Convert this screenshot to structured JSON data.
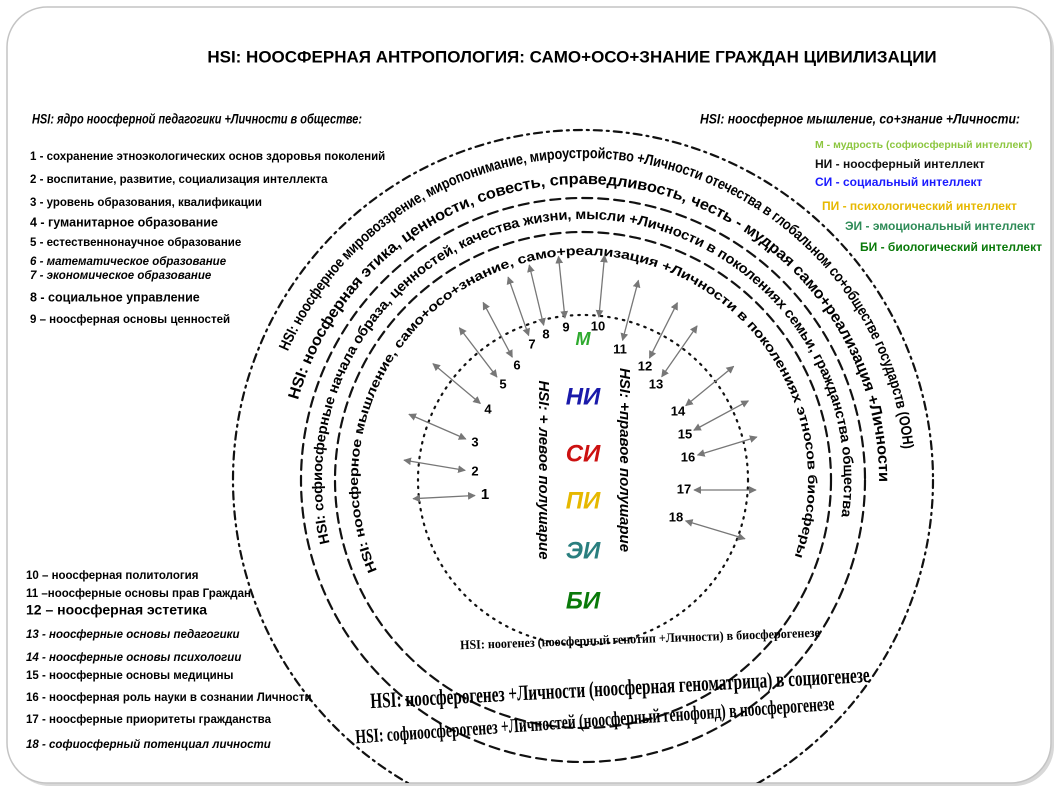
{
  "title": "HSI: НООСФЕРНАЯ АНТРОПОЛОГИЯ: САМО+ОСО+ЗНАНИЕ ГРАЖДАН ЦИВИЛИЗАЦИИ",
  "left_panel": {
    "heading": "HSI: ядро ноосферной педагогики +Личности в обществе:",
    "items": [
      "1 - сохранение этноэкологических основ здоровья поколений",
      "2 - воспитание, развитие, социализация интеллекта",
      "3 - уровень образования, квалификации",
      "4 - гуманитарное образование",
      "5 - естественнонаучное образование",
      "6 - математическое образование",
      "7 - экономическое образование",
      "8 - социальное управление",
      "9 – ноосферная основы ценностей"
    ]
  },
  "right_panel": {
    "heading": "HSI: ноосферное мышление, со+знание +Личности:",
    "items": [
      {
        "text": "М - мудрость (софиосферный интеллект)",
        "color": "#8cc63f"
      },
      {
        "text": "НИ - ноосферный интеллект",
        "color": "#111111"
      },
      {
        "text": "СИ - социальный интеллект",
        "color": "#1a1aff"
      },
      {
        "text": "ПИ - психологический интеллект",
        "color": "#e6b800"
      },
      {
        "text": "ЭИ - эмоциональный интеллект",
        "color": "#2e8b57"
      },
      {
        "text": "БИ - биологический интеллект",
        "color": "#0a7a0a"
      }
    ]
  },
  "bottom_left": {
    "items": [
      "10 – ноосферная политология",
      "11 –ноосферные основы прав Граждан",
      "12 – ноосферная эстетика",
      "13 - ноосферные основы педагогики",
      "14 - ноосферные основы психологии",
      "15 - ноосферные основы медицины",
      "16 - ноосферная роль науки в сознании Личности",
      "17 - ноосферные приоритеты гражданства",
      "18 - софиосферный потенциал личности"
    ]
  },
  "rings": [
    "HSI: ноосферное мировоззрение, миропонимание, мироустройство +Личности отечества в глобальном со+обществе государств (ООН)",
    "HSI: ноосферная этика, ценности, совесть, справедливость, честь - мудрая само+реализация +Личности",
    "HSI: софиосферные начала образа, ценностей, качества жизни, мысли +Личности в поколениях семьи, гражданства общества",
    "HSI: ноосферное мышление, само+осо+знание, само+реализация +Личности в поколениях этносов биосферы"
  ],
  "center": {
    "left_label": "HSI: + левое полушарие",
    "right_label": "HSI: +правое полушарие",
    "letters": [
      {
        "text": "М",
        "color": "#2eaa2e"
      },
      {
        "text": "НИ",
        "color": "#1a1aaa"
      },
      {
        "text": "СИ",
        "color": "#cc1111"
      },
      {
        "text": "ПИ",
        "color": "#e6b800"
      },
      {
        "text": "ЭИ",
        "color": "#2a7f7f"
      },
      {
        "text": "БИ",
        "color": "#0a7a0a"
      }
    ]
  },
  "numbers": [
    "1",
    "2",
    "3",
    "4",
    "5",
    "6",
    "7",
    "8",
    "9",
    "10",
    "11",
    "12",
    "13",
    "14",
    "15",
    "16",
    "17",
    "18"
  ],
  "genesis": [
    "HSI: ноогенез (ноосферный генотип +Личности) в биосферогенезе",
    "HSI: ноосферогенез +Личности (ноосферная геноматрица) в социогенезе",
    "HSI: софиоосферогенез +Личностей (ноосферный генофонд) в ноосферогенезе"
  ]
}
